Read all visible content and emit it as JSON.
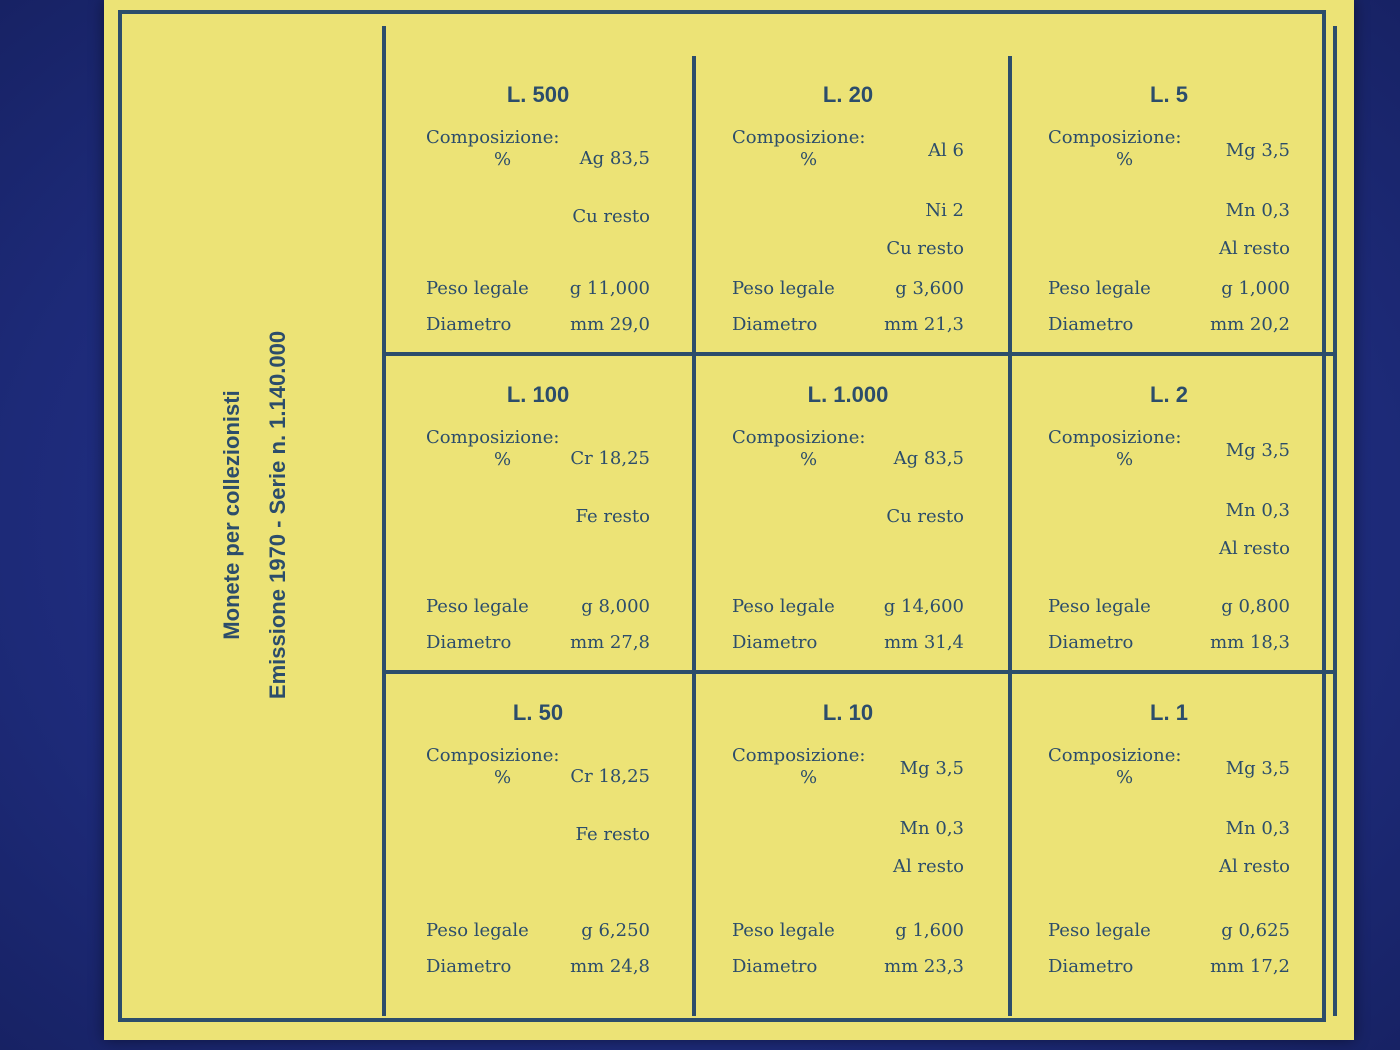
{
  "sidebar": {
    "line1": "Monete per collezionisti",
    "line2": "Emissione 1970 - Serie n. 1.140.000"
  },
  "coins": [
    {
      "denom": "L. 500",
      "comp_label": "Composizione:",
      "comp_unit": "%",
      "comp": [
        "Ag 83,5",
        "Cu resto"
      ],
      "weight_label": "Peso legale",
      "weight": "g 11,000",
      "diam_label": "Diametro",
      "diam": "mm 29,0"
    },
    {
      "denom": "L. 20",
      "comp_label": "Composizione:",
      "comp_unit": "%",
      "comp": [
        "Al 6",
        "Ni 2",
        "Cu resto"
      ],
      "weight_label": "Peso legale",
      "weight": "g 3,600",
      "diam_label": "Diametro",
      "diam": "mm 21,3"
    },
    {
      "denom": "L. 5",
      "comp_label": "Composizione:",
      "comp_unit": "%",
      "comp": [
        "Mg 3,5",
        "Mn 0,3",
        "Al resto"
      ],
      "weight_label": "Peso legale",
      "weight": "g 1,000",
      "diam_label": "Diametro",
      "diam": "mm 20,2"
    },
    {
      "denom": "L. 100",
      "comp_label": "Composizione:",
      "comp_unit": "%",
      "comp": [
        "Cr 18,25",
        "Fe resto"
      ],
      "weight_label": "Peso legale",
      "weight": "g 8,000",
      "diam_label": "Diametro",
      "diam": "mm 27,8"
    },
    {
      "denom": "L. 1.000",
      "comp_label": "Composizione:",
      "comp_unit": "%",
      "comp": [
        "Ag 83,5",
        "Cu resto"
      ],
      "weight_label": "Peso legale",
      "weight": "g 14,600",
      "diam_label": "Diametro",
      "diam": "mm 31,4"
    },
    {
      "denom": "L. 2",
      "comp_label": "Composizione:",
      "comp_unit": "%",
      "comp": [
        "Mg 3,5",
        "Mn 0,3",
        "Al resto"
      ],
      "weight_label": "Peso legale",
      "weight": "g 0,800",
      "diam_label": "Diametro",
      "diam": "mm 18,3"
    },
    {
      "denom": "L. 50",
      "comp_label": "Composizione:",
      "comp_unit": "%",
      "comp": [
        "Cr 18,25",
        "Fe resto"
      ],
      "weight_label": "Peso legale",
      "weight": "g 6,250",
      "diam_label": "Diametro",
      "diam": "mm 24,8"
    },
    {
      "denom": "L. 10",
      "comp_label": "Composizione:",
      "comp_unit": "%",
      "comp": [
        "Mg 3,5",
        "Mn 0,3",
        "Al resto"
      ],
      "weight_label": "Peso legale",
      "weight": "g 1,600",
      "diam_label": "Diametro",
      "diam": "mm 23,3"
    },
    {
      "denom": "L. 1",
      "comp_label": "Composizione:",
      "comp_unit": "%",
      "comp": [
        "Mg 3,5",
        "Mn 0,3",
        "Al resto"
      ],
      "weight_label": "Peso legale",
      "weight": "g 0,625",
      "diam_label": "Diametro",
      "diam": "mm 17,2"
    }
  ]
}
